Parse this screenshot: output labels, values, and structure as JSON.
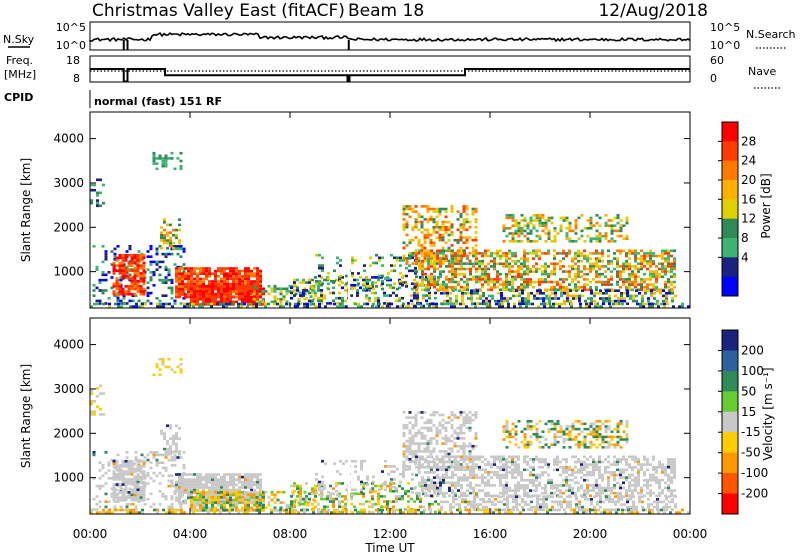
{
  "header": {
    "title": "Christmas Valley East (fitACF)",
    "beam": "Beam 18",
    "date": "12/Aug/2018"
  },
  "status_panels": {
    "nsky_label": "N.Sky",
    "nsky_ticks": [
      "10^5",
      "10^0"
    ],
    "nsearch_label": "N.Search",
    "nsearch_ticks": [
      "10^5",
      "10^0"
    ],
    "freq_label_1": "Freq.",
    "freq_label_2": "[MHz]",
    "freq_ticks": [
      "18",
      "8"
    ],
    "nave_label": "Nave",
    "nave_ticks": [
      "60",
      "0"
    ],
    "cpid_label": "CPID",
    "cpid_text": "normal (fast) 151 RF",
    "freq_steps": [
      [
        0,
        13.0
      ],
      [
        1.35,
        8.2
      ],
      [
        1.5,
        13.0
      ],
      [
        3.0,
        10.6
      ],
      [
        10.3,
        8.2
      ],
      [
        10.38,
        10.6
      ],
      [
        15.0,
        13.0
      ],
      [
        24,
        13.0
      ]
    ]
  },
  "chart_data": [
    {
      "type": "heatmap",
      "name": "power-panel",
      "ylabel": "Slant Range [km]",
      "yticks": [
        1000,
        2000,
        3000,
        4000
      ],
      "ylim": [
        180,
        4600
      ],
      "xlim": [
        0,
        24
      ],
      "colorbar": {
        "label": "Power [dB]",
        "ticks": [
          "28",
          "24",
          "20",
          "16",
          "12",
          "8",
          "4"
        ],
        "colors": [
          "#ff0000",
          "#ff3b00",
          "#ff7a00",
          "#ffb000",
          "#e0d000",
          "#2e8b57",
          "#3cb371",
          "#1a237e",
          "#0000ff"
        ]
      }
    },
    {
      "type": "heatmap",
      "name": "velocity-panel",
      "ylabel": "Slant Range [km]",
      "yticks": [
        1000,
        2000,
        3000,
        4000
      ],
      "ylim": [
        180,
        4600
      ],
      "xlim": [
        0,
        24
      ],
      "xlabel": "Time UT",
      "xticks": [
        "00:00",
        "04:00",
        "08:00",
        "12:00",
        "16:00",
        "20:00",
        "00:00"
      ],
      "colorbar": {
        "label": "Velocity [m s⁻¹]",
        "ticks": [
          "200",
          "100",
          "50",
          "15",
          "-15",
          "-50",
          "-100",
          "-200"
        ],
        "colors": [
          "#1a237e",
          "#2e5fa0",
          "#2e8b57",
          "#66cc33",
          "#c8c8c8",
          "#ffcc00",
          "#ff9900",
          "#ff5500",
          "#ff0000"
        ]
      }
    }
  ]
}
